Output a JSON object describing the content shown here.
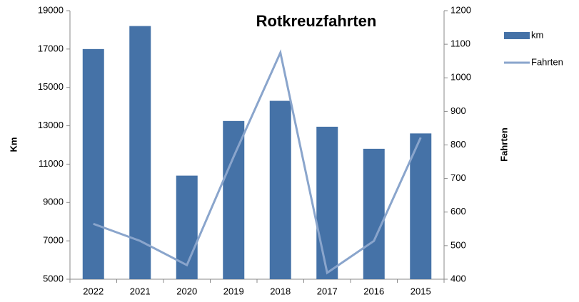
{
  "chart_data": {
    "type": "bar_line",
    "title": "Rotkreuzfahrten",
    "ylabel": "Km",
    "y2label": "Fahrten",
    "categories": [
      "2022",
      "2021",
      "2020",
      "2019",
      "2018",
      "2017",
      "2016",
      "2015"
    ],
    "series": [
      {
        "name": "km",
        "type": "bar",
        "color": "#4572a7",
        "values": [
          17000,
          18200,
          10400,
          13250,
          14300,
          12950,
          11800,
          12600
        ]
      },
      {
        "name": "Fahrten",
        "type": "line",
        "axis": "y2",
        "color": "#8aa5cc",
        "values": [
          565,
          514,
          442,
          765,
          1075,
          419,
          514,
          822
        ]
      }
    ],
    "ylim": [
      5000,
      19000
    ],
    "yticks": [
      5000,
      7000,
      9000,
      11000,
      13000,
      15000,
      17000,
      19000
    ],
    "y2lim": [
      400,
      1200
    ],
    "y2ticks": [
      400,
      500,
      600,
      700,
      800,
      900,
      1000,
      1100,
      1200
    ],
    "grid": false,
    "legend": "right"
  }
}
